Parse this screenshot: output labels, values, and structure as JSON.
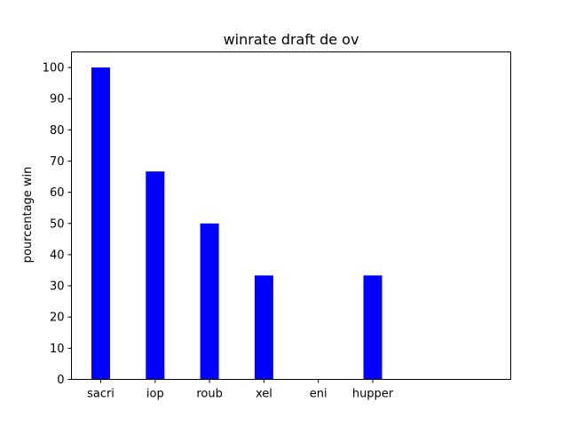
{
  "chart_data": {
    "type": "bar",
    "title": "winrate draft de ov",
    "xlabel": "",
    "ylabel": "pourcentage win",
    "categories": [
      "sacri",
      "iop",
      "roub",
      "xel",
      "eni",
      "hupper"
    ],
    "values": [
      100,
      66.67,
      50,
      33.33,
      0,
      33.33
    ],
    "ylim": [
      0,
      105
    ],
    "yticks": [
      0,
      10,
      20,
      30,
      40,
      50,
      60,
      70,
      80,
      90,
      100
    ],
    "bar_color": "#0000ff",
    "grid": false,
    "legend": "none"
  }
}
